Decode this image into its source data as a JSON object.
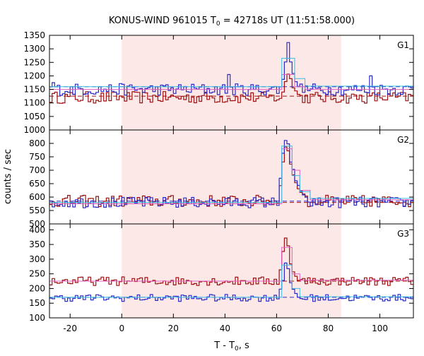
{
  "chart_data": {
    "type": "line",
    "title_main": "KONUS-WIND 961015 T",
    "title_sub": "0",
    "title_rest": " = 42718s UT (11:51:58.000)",
    "ylabel": "counts / sec",
    "xlabel_main": "T - T",
    "xlabel_sub": "0",
    "xlabel_rest": ", s",
    "xlim": [
      -28,
      113
    ],
    "xticks": [
      -20,
      0,
      20,
      40,
      60,
      80,
      100
    ],
    "highlight_range": [
      0,
      85
    ],
    "colors": {
      "highlight": "#fde8e8",
      "blue": "#2b2bc8",
      "red": "#a01010",
      "cyan": "#38c0e0",
      "magenta": "#e060c0"
    },
    "panels": [
      {
        "label": "G1",
        "ylim": [
          1000,
          1350
        ],
        "yticks": [
          1000,
          1050,
          1100,
          1150,
          1200,
          1250,
          1300,
          1350
        ],
        "bg_blue": 1160,
        "bg_red": 1125,
        "base_blue": 1150,
        "base_red": 1120,
        "amp_blue": 22,
        "amp_red": 22,
        "peak_blue": [
          [
            62,
            40
          ],
          [
            63,
            100
          ],
          [
            64,
            170
          ],
          [
            65,
            105
          ],
          [
            66,
            60
          ],
          [
            67,
            30
          ],
          [
            68,
            15
          ]
        ],
        "peak_red": [
          [
            62,
            20
          ],
          [
            63,
            60
          ],
          [
            64,
            85
          ],
          [
            65,
            70
          ],
          [
            66,
            40
          ],
          [
            67,
            25
          ],
          [
            68,
            12
          ]
        ],
        "spikes_blue": [
          [
            41,
            1205
          ],
          [
            96,
            1200
          ],
          [
            -27,
            1175
          ]
        ],
        "model_cyan": [
          [
            -28,
            1160
          ],
          [
            61,
            1160
          ],
          [
            62,
            1265
          ],
          [
            66,
            1265
          ],
          [
            67,
            1190
          ],
          [
            70,
            1190
          ],
          [
            71,
            1162
          ],
          [
            113,
            1162
          ]
        ],
        "model_magenta": [
          [
            -28,
            1150
          ],
          [
            61,
            1150
          ],
          [
            62,
            1205
          ],
          [
            66,
            1205
          ],
          [
            67,
            1160
          ],
          [
            70,
            1160
          ],
          [
            71,
            1150
          ],
          [
            113,
            1150
          ]
        ]
      },
      {
        "label": "G2",
        "ylim": [
          500,
          850
        ],
        "yticks": [
          500,
          550,
          600,
          650,
          700,
          750,
          800
        ],
        "bg_blue": 585,
        "bg_red": 580,
        "base_blue": 580,
        "base_red": 585,
        "amp_blue": 20,
        "amp_red": 22,
        "peak_blue": [
          [
            61,
            90
          ],
          [
            62,
            180
          ],
          [
            63,
            230
          ],
          [
            64,
            220
          ],
          [
            65,
            150
          ],
          [
            66,
            120
          ],
          [
            67,
            80
          ],
          [
            68,
            60
          ],
          [
            69,
            40
          ],
          [
            70,
            30
          ],
          [
            71,
            20
          ]
        ],
        "peak_red": [
          [
            61,
            60
          ],
          [
            62,
            150
          ],
          [
            63,
            200
          ],
          [
            64,
            190
          ],
          [
            65,
            140
          ],
          [
            66,
            100
          ],
          [
            67,
            70
          ],
          [
            68,
            50
          ],
          [
            69,
            30
          ],
          [
            70,
            25
          ],
          [
            71,
            15
          ]
        ],
        "spikes_blue": [],
        "model_cyan": [
          [
            -28,
            580
          ],
          [
            61,
            580
          ],
          [
            62,
            790
          ],
          [
            65,
            790
          ],
          [
            66,
            680
          ],
          [
            68,
            680
          ],
          [
            69,
            620
          ],
          [
            72,
            620
          ],
          [
            73,
            595
          ],
          [
            113,
            595
          ]
        ],
        "model_magenta": [
          [
            -28,
            575
          ],
          [
            61,
            575
          ],
          [
            62,
            780
          ],
          [
            65,
            780
          ],
          [
            66,
            700
          ],
          [
            68,
            700
          ],
          [
            69,
            625
          ],
          [
            72,
            625
          ],
          [
            73,
            590
          ],
          [
            113,
            590
          ]
        ]
      },
      {
        "label": "G3",
        "ylim": [
          100,
          420
        ],
        "yticks": [
          100,
          150,
          200,
          250,
          300,
          350,
          400
        ],
        "bg_blue": 170,
        "bg_red": 225,
        "base_blue": 168,
        "base_red": 225,
        "amp_blue": 12,
        "amp_red": 15,
        "peak_blue": [
          [
            61,
            30
          ],
          [
            62,
            60
          ],
          [
            63,
            120
          ],
          [
            64,
            100
          ],
          [
            65,
            50
          ],
          [
            66,
            30
          ],
          [
            67,
            15
          ]
        ],
        "peak_red": [
          [
            61,
            40
          ],
          [
            62,
            100
          ],
          [
            63,
            145
          ],
          [
            64,
            120
          ],
          [
            65,
            60
          ],
          [
            66,
            30
          ],
          [
            67,
            15
          ]
        ],
        "spikes_blue": [],
        "model_cyan": [
          [
            -28,
            170
          ],
          [
            61,
            170
          ],
          [
            62,
            280
          ],
          [
            65,
            280
          ],
          [
            66,
            200
          ],
          [
            68,
            200
          ],
          [
            69,
            172
          ],
          [
            113,
            172
          ]
        ],
        "model_magenta": [
          [
            -28,
            225
          ],
          [
            61,
            225
          ],
          [
            62,
            340
          ],
          [
            65,
            340
          ],
          [
            66,
            250
          ],
          [
            68,
            250
          ],
          [
            69,
            228
          ],
          [
            113,
            228
          ]
        ]
      }
    ]
  }
}
